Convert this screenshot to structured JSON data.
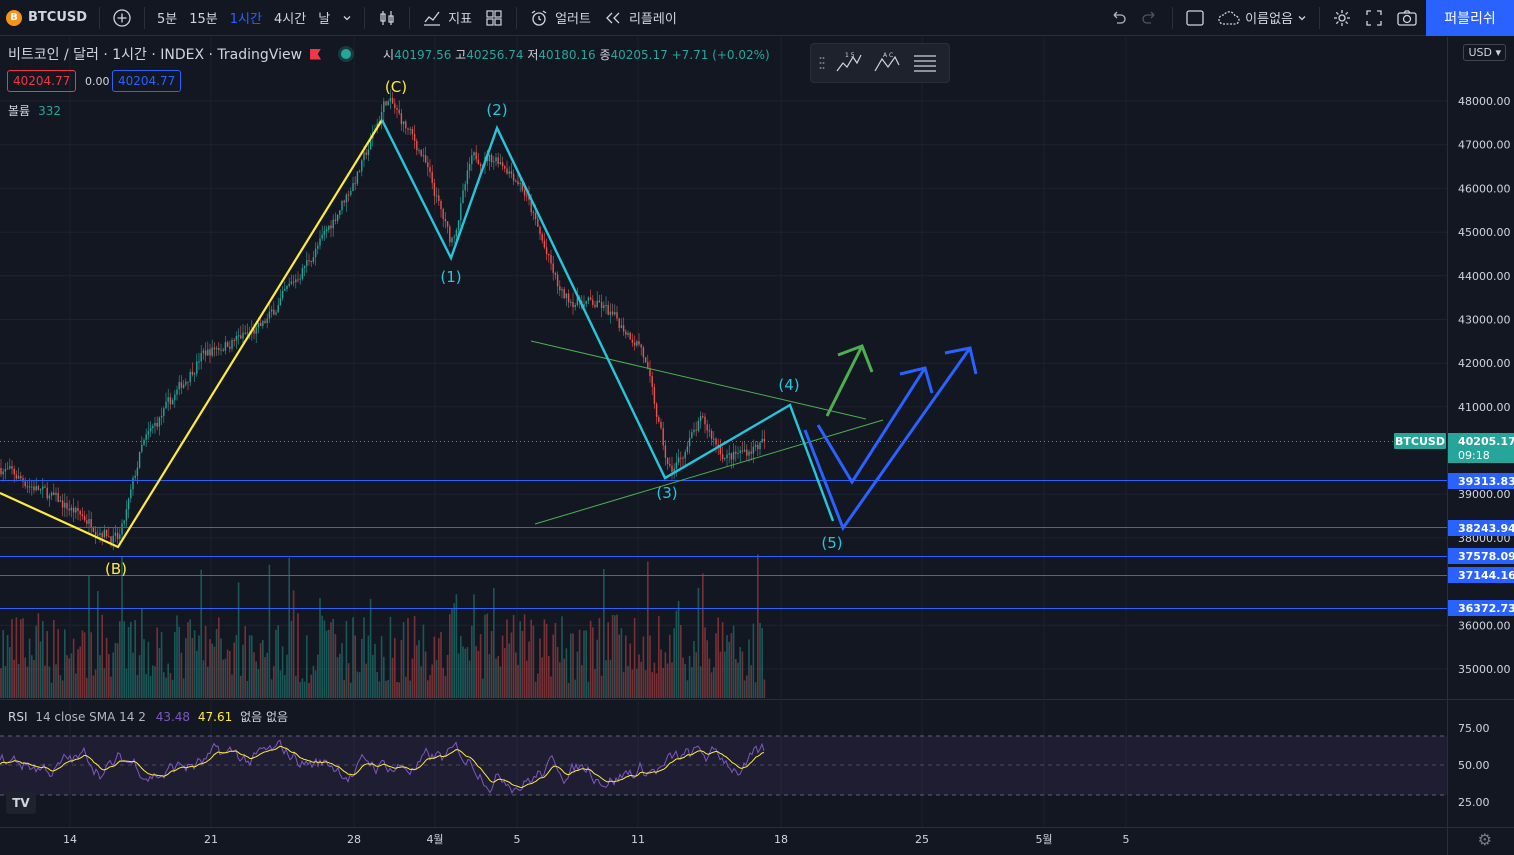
{
  "toolbar": {
    "symbol": "BTCUSD",
    "symbol_icon": "B",
    "timeframes": [
      "5분",
      "15분",
      "1시간",
      "4시간",
      "날"
    ],
    "active_timeframe": "1시간",
    "indicators_label": "지표",
    "alerts_label": "얼러트",
    "replay_label": "리플레이",
    "layout_name": "이름없음",
    "publish_label": "퍼블리쉬"
  },
  "legend": {
    "title": "비트코인 / 달러 · 1시간 · INDEX · TradingView",
    "o_label": "시",
    "o": "40197.56",
    "h_label": "고",
    "h": "40256.74",
    "l_label": "저",
    "l": "40180.16",
    "c_label": "종",
    "c": "40205.17",
    "change": "+7.71 (+0.02%)",
    "bid": "40204.77",
    "spread": "0.00",
    "ask": "40204.77"
  },
  "volume": {
    "label": "볼륨",
    "value": "332"
  },
  "rsi": {
    "label": "RSI",
    "params": "14 close SMA 14 2",
    "value1": "43.48",
    "value2": "47.61",
    "extra": "없음 없음",
    "levels": [
      "75.00",
      "50.00",
      "25.00"
    ]
  },
  "currency": "USD",
  "price_axis": [
    "48000.00",
    "47000.00",
    "46000.00",
    "45000.00",
    "44000.00",
    "43000.00",
    "42000.00",
    "41000.00",
    "39000.00",
    "38000.00",
    "36000.00",
    "35000.00"
  ],
  "price_tags": {
    "last": "40205.17",
    "countdown": "09:18",
    "symbol_tag": "BTCUSD",
    "levels": [
      "39313.83",
      "38243.94",
      "37578.09",
      "37144.16",
      "36372.73"
    ]
  },
  "time_axis": [
    "14",
    "21",
    "28",
    "4월",
    "5",
    "11",
    "18",
    "25",
    "5월",
    "5"
  ],
  "wave_labels": [
    "(B)",
    "(C)",
    "(1)",
    "(2)",
    "(3)",
    "(4)",
    "(5)"
  ],
  "colors": {
    "accent": "#2962ff",
    "up": "#26a69a",
    "down": "#ef5350",
    "wave_yellow": "#ffeb3b",
    "wave_cyan": "#26c6da",
    "arrow_green": "#4caf50",
    "arrow_blue": "#2962ff"
  },
  "drawing_toolbar": {
    "tool1": "1 5",
    "tool2": "A C"
  }
}
